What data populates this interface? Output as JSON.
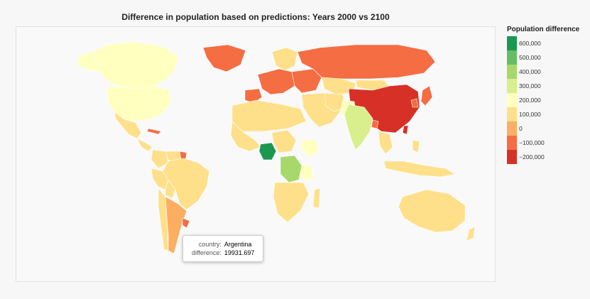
{
  "chart": {
    "title": "Difference in population based on predictions: Years 2000 vs 2100"
  },
  "legend": {
    "title": "Population difference",
    "ticks": [
      "600,000",
      "500,000",
      "400,000",
      "300,000",
      "200,000",
      "100,000",
      "0",
      "−100,000",
      "−200,000"
    ],
    "colors": [
      "#1a9850",
      "#66bd63",
      "#a6d96a",
      "#d9ef8b",
      "#ffffbf",
      "#fee08b",
      "#fdae61",
      "#f46d43",
      "#d73027"
    ]
  },
  "tooltip": {
    "country_key": "country:",
    "country_value": "Argentina",
    "difference_key": "difference:",
    "difference_value": "19931.697"
  },
  "chart_data": {
    "type": "choropleth",
    "title": "Difference in population based on predictions: Years 2000 vs 2100",
    "legend_title": "Population difference",
    "scale_range": [
      -200000,
      600000
    ],
    "regions": [
      {
        "name": "Nigeria",
        "value": 600000
      },
      {
        "name": "Democratic Republic of the Congo",
        "value": 350000
      },
      {
        "name": "India",
        "value": 250000
      },
      {
        "name": "Pakistan",
        "value": 200000
      },
      {
        "name": "Canada",
        "value": 200000
      },
      {
        "name": "Ethiopia",
        "value": 150000
      },
      {
        "name": "Tanzania",
        "value": 150000
      },
      {
        "name": "Argentina",
        "value": 19931.697
      },
      {
        "name": "China",
        "value": -250000
      },
      {
        "name": "Taiwan",
        "value": -200000
      },
      {
        "name": "Russia",
        "value": -60000
      },
      {
        "name": "Japan",
        "value": -60000
      },
      {
        "name": "Spain",
        "value": -60000
      },
      {
        "name": "Bangladesh",
        "value": -60000
      }
    ]
  }
}
